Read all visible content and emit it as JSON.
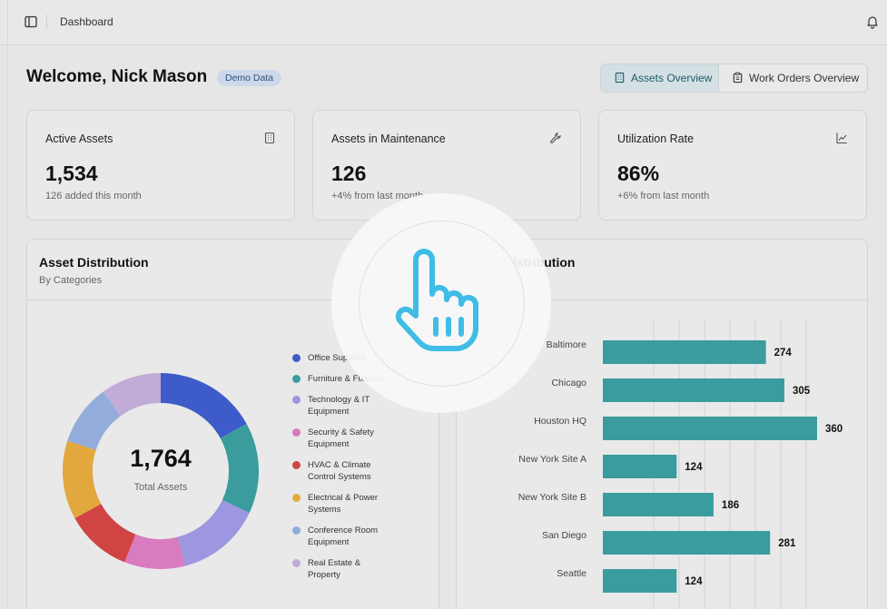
{
  "topbar": {
    "breadcrumb": "Dashboard",
    "sidebar_icon": "sidebar-toggle-icon",
    "bell_icon": "bell-icon"
  },
  "header": {
    "welcome": "Welcome, Nick Mason",
    "badge": "Demo Data"
  },
  "tabs": [
    {
      "label": "Assets Overview",
      "icon": "building-icon",
      "active": true
    },
    {
      "label": "Work Orders Overview",
      "icon": "clipboard-icon",
      "active": false
    }
  ],
  "stats": [
    {
      "label": "Active Assets",
      "value": "1,534",
      "sub": "126 added this month",
      "icon": "building-icon"
    },
    {
      "label": "Assets in Maintenance",
      "value": "126",
      "sub": "+4% from last month",
      "icon": "wrench-icon"
    },
    {
      "label": "Utilization Rate",
      "value": "86%",
      "sub": "+6% from last month",
      "icon": "line-chart-icon"
    }
  ],
  "distribution": {
    "title": "Asset Distribution",
    "subtitle": "By Categories",
    "total": "1,764",
    "total_label": "Total Assets"
  },
  "location": {
    "title_visible": "istribution"
  },
  "chart_data": [
    {
      "type": "pie",
      "title": "Asset Distribution",
      "subtitle": "By Categories",
      "center_value": "1,764",
      "center_label": "Total Assets",
      "slices": [
        {
          "label": "Office Supplies",
          "value": 17,
          "color": "#3d5cc9"
        },
        {
          "label": "Furniture & Fixtures",
          "value": 15,
          "color": "#3a9c9c"
        },
        {
          "label": "Technology & IT Equipment",
          "value": 14,
          "color": "#9c97e0"
        },
        {
          "label": "Security & Safety Equipment",
          "value": 10,
          "color": "#d97bbf"
        },
        {
          "label": "HVAC & Climate Control Systems",
          "value": 11,
          "color": "#d04444"
        },
        {
          "label": "Electrical & Power Systems",
          "value": 13,
          "color": "#e3a83d"
        },
        {
          "label": "Conference Room Equipment",
          "value": 10,
          "color": "#93acdb"
        },
        {
          "label": "Real Estate & Property",
          "value": 10,
          "color": "#c1acd8"
        }
      ]
    },
    {
      "type": "bar",
      "orientation": "horizontal",
      "title": "istribution",
      "categories": [
        "Baltimore",
        "Chicago",
        "Houston HQ",
        "New York Site A",
        "New York Site B",
        "San Diego",
        "Seattle"
      ],
      "values": [
        274,
        305,
        360,
        124,
        186,
        281,
        124
      ],
      "color": "#3a9c9f",
      "xlim": [
        0,
        400
      ]
    }
  ]
}
